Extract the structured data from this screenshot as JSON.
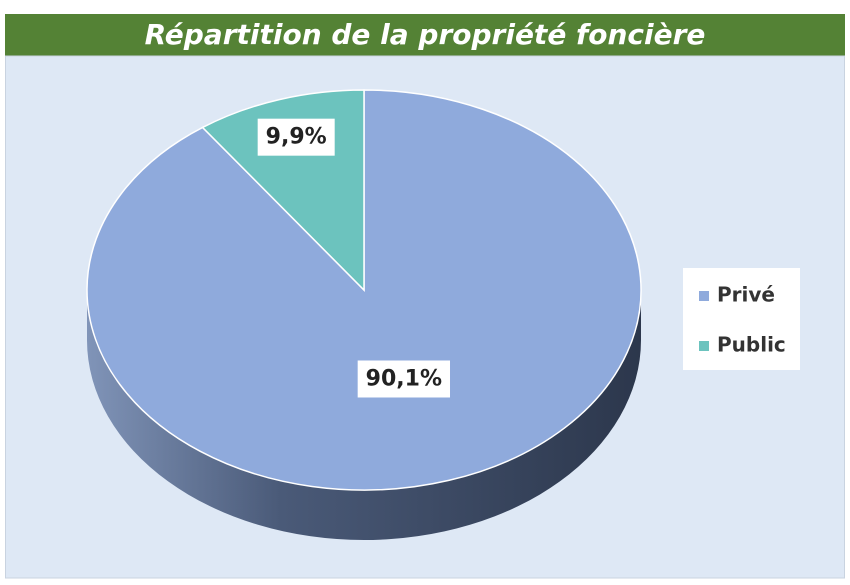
{
  "chart_data": {
    "type": "pie",
    "title": "Répartition de la propriété foncière",
    "categories": [
      "Privé",
      "Public"
    ],
    "values": [
      90.1,
      9.9
    ],
    "value_labels": [
      "90,1%",
      "9,9%"
    ],
    "colors": [
      "#8faadc",
      "#6cc3be"
    ],
    "legend": "right"
  }
}
